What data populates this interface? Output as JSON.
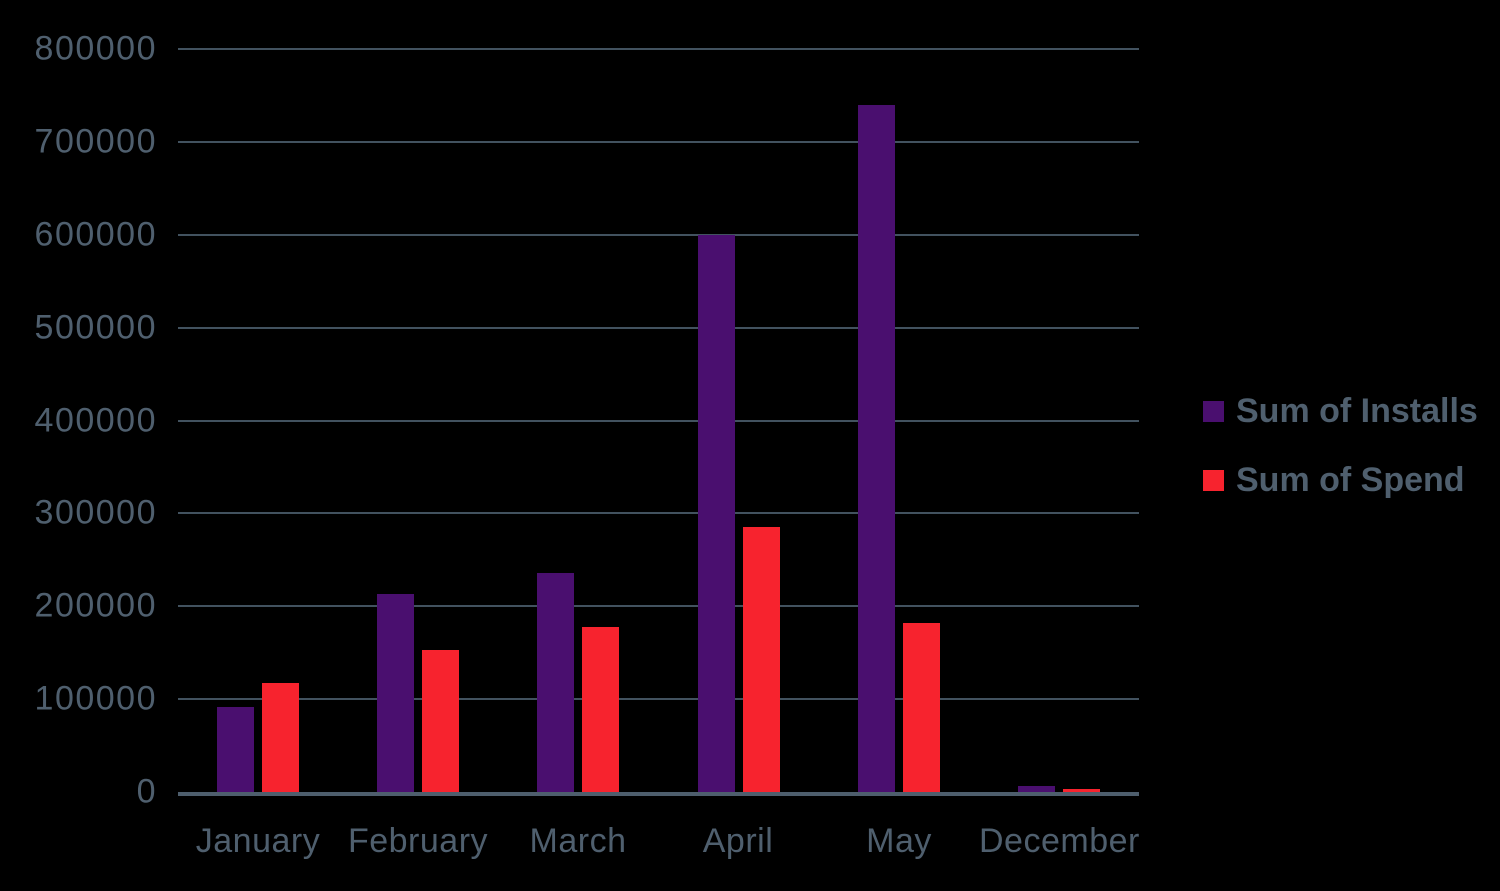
{
  "colors": {
    "background": "#000000",
    "text": "#4f5f6e",
    "gridline": "#42525f",
    "axis_line": "#4e5e6d",
    "installs": "#4a0f6f",
    "spend": "#f7232e"
  },
  "legend": {
    "items": [
      {
        "label": "Sum of Installs",
        "color": "#4a0f6f"
      },
      {
        "label": "Sum of Spend",
        "color": "#f7232e"
      }
    ]
  },
  "chart_data": {
    "type": "bar",
    "title": "",
    "categories": [
      "January",
      "February",
      "March",
      "April",
      "May",
      "December"
    ],
    "series": [
      {
        "name": "Sum of Installs",
        "color": "#4a0f6f",
        "values": [
          91000,
          213000,
          236000,
          600000,
          740000,
          6000
        ]
      },
      {
        "name": "Sum of Spend",
        "color": "#f7232e",
        "values": [
          117000,
          153000,
          178000,
          285000,
          182000,
          3500
        ]
      }
    ],
    "ylim": [
      0,
      800000
    ],
    "ytick_step": 100000,
    "ytick_labels": [
      "0",
      "100000",
      "200000",
      "300000",
      "400000",
      "500000",
      "600000",
      "700000",
      "800000"
    ],
    "grid": true,
    "legend_position": "right"
  }
}
